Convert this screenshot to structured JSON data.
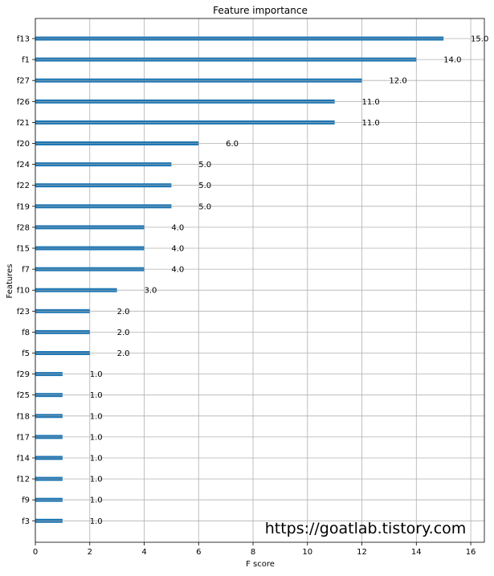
{
  "chart_data": {
    "type": "bar",
    "orientation": "horizontal",
    "title": "Feature importance",
    "xlabel": "F score",
    "ylabel": "Features",
    "xlim": [
      0,
      16.5
    ],
    "x_ticks": [
      0,
      2,
      4,
      6,
      8,
      10,
      12,
      14,
      16
    ],
    "grid": true,
    "bar_color": "#1f77b4",
    "categories": [
      "f13",
      "f1",
      "f27",
      "f26",
      "f21",
      "f20",
      "f24",
      "f22",
      "f19",
      "f28",
      "f15",
      "f7",
      "f10",
      "f23",
      "f8",
      "f5",
      "f29",
      "f25",
      "f18",
      "f17",
      "f14",
      "f12",
      "f9",
      "f3"
    ],
    "values": [
      15.0,
      14.0,
      12.0,
      11.0,
      11.0,
      6.0,
      5.0,
      5.0,
      5.0,
      4.0,
      4.0,
      4.0,
      3.0,
      2.0,
      2.0,
      2.0,
      1.0,
      1.0,
      1.0,
      1.0,
      1.0,
      1.0,
      1.0,
      1.0
    ],
    "data_labels": [
      "15.0",
      "14.0",
      "12.0",
      "11.0",
      "11.0",
      "6.0",
      "5.0",
      "5.0",
      "5.0",
      "4.0",
      "4.0",
      "4.0",
      "3.0",
      "2.0",
      "2.0",
      "2.0",
      "1.0",
      "1.0",
      "1.0",
      "1.0",
      "1.0",
      "1.0",
      "1.0",
      "1.0"
    ]
  },
  "watermark": {
    "text": "https://goatlab.tistory.com",
    "color": "#1aaa8e"
  }
}
